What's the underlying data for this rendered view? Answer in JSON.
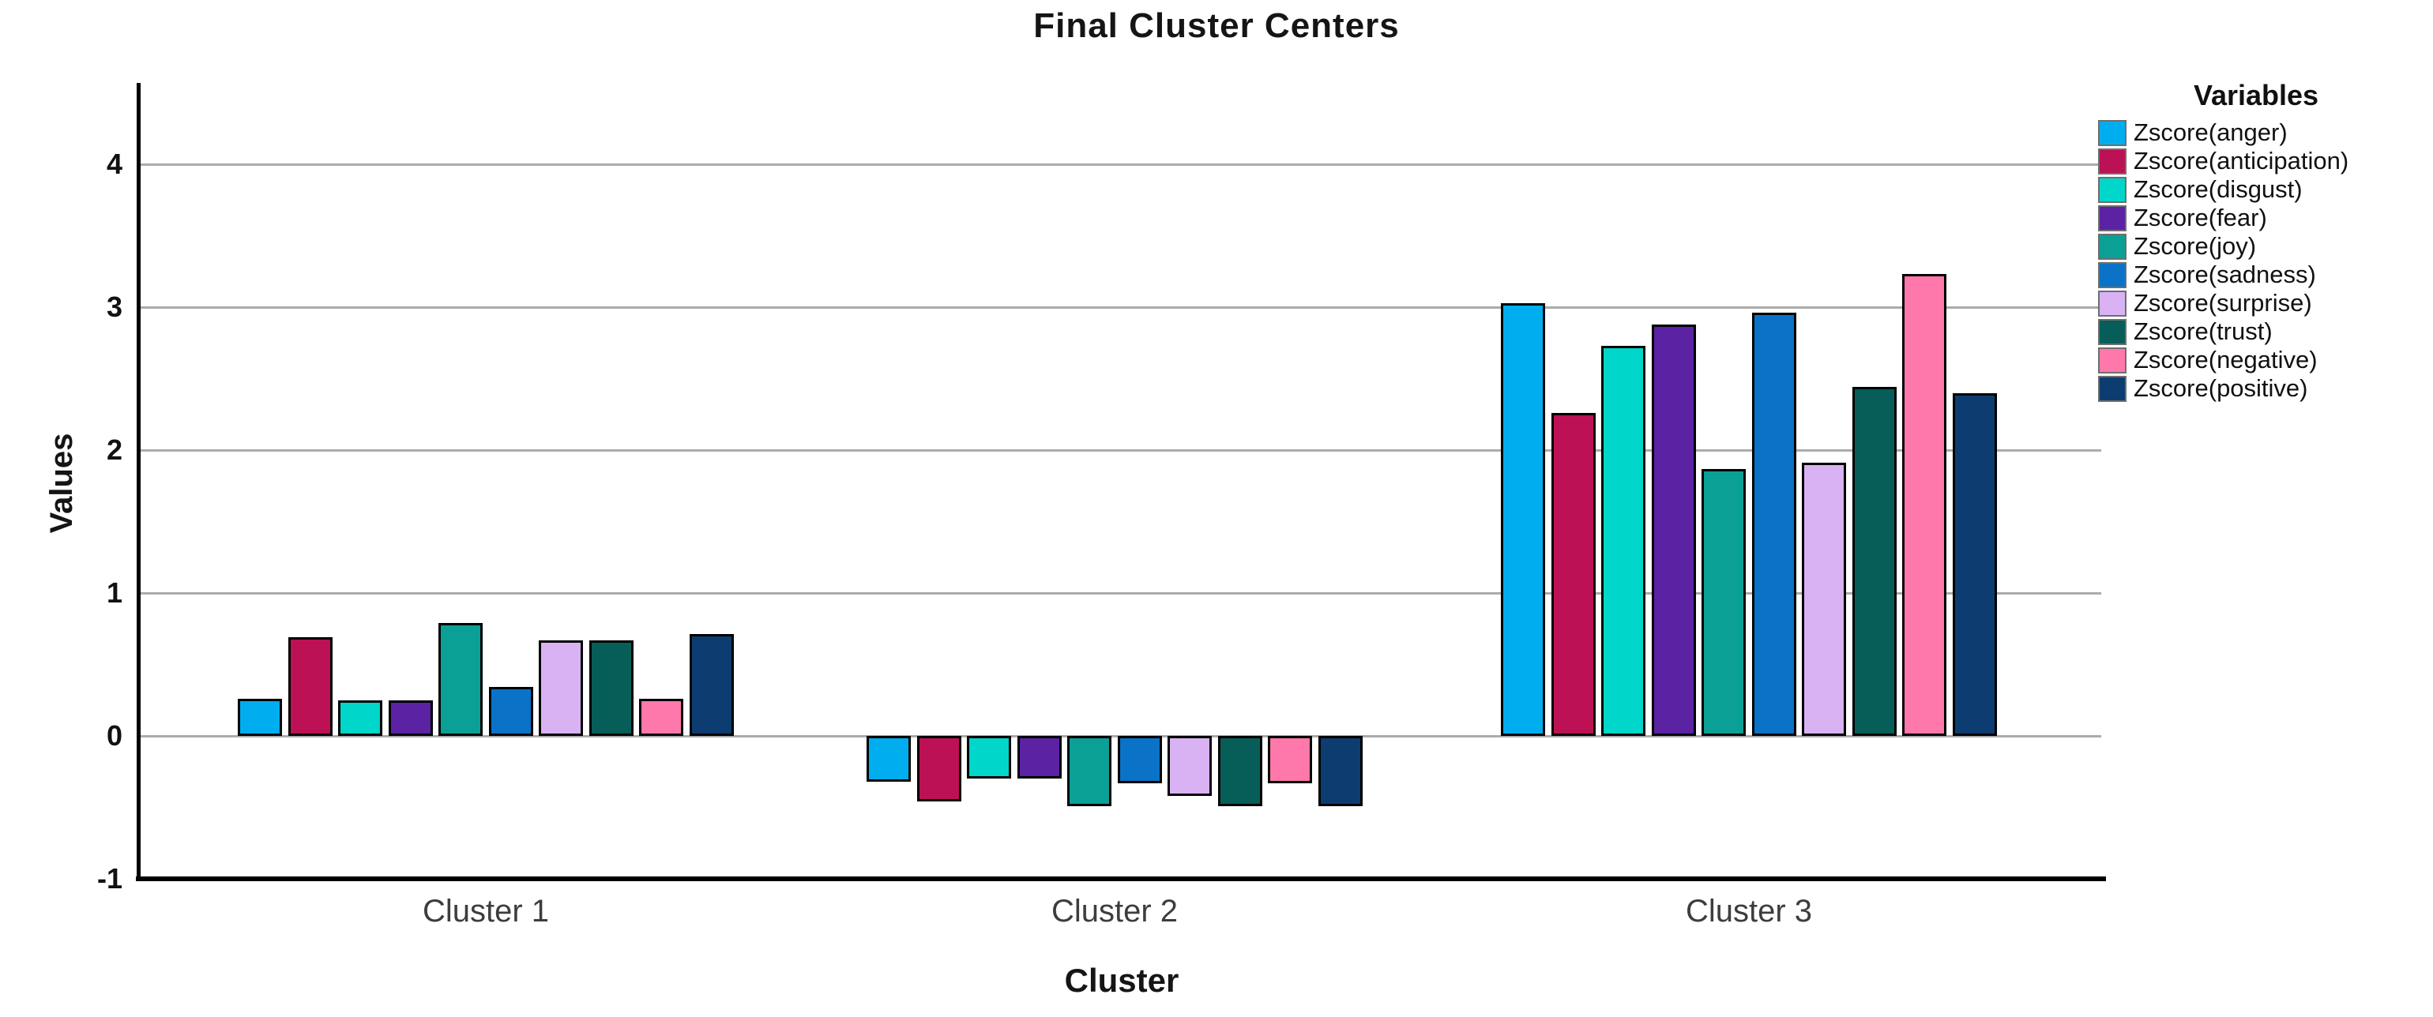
{
  "chart_data": {
    "type": "bar",
    "title": "Final Cluster Centers",
    "xlabel": "Cluster",
    "ylabel": "Values",
    "categories": [
      "Cluster 1",
      "Cluster 2",
      "Cluster 3"
    ],
    "y_ticks": [
      4,
      3,
      2,
      1,
      0,
      -1
    ],
    "ylim": [
      -1,
      4.55
    ],
    "grid": "horizontal-gridlines-at-0-to-4",
    "legend_title": "Variables",
    "legend_position": "right",
    "bar_outline_color": "#000000",
    "gridline_color": "#ababab",
    "series": [
      {
        "name": "Zscore(anger)",
        "color": "#00AEEF",
        "values": [
          0.26,
          -0.32,
          3.03
        ]
      },
      {
        "name": "Zscore(anticipation)",
        "color": "#BC1154",
        "values": [
          0.69,
          -0.46,
          2.26
        ]
      },
      {
        "name": "Zscore(disgust)",
        "color": "#00D6C9",
        "values": [
          0.25,
          -0.3,
          2.73
        ]
      },
      {
        "name": "Zscore(fear)",
        "color": "#5B22A3",
        "values": [
          0.25,
          -0.3,
          2.88
        ]
      },
      {
        "name": "Zscore(joy)",
        "color": "#0AA096",
        "values": [
          0.79,
          -0.49,
          1.87
        ]
      },
      {
        "name": "Zscore(sadness)",
        "color": "#0A73C8",
        "values": [
          0.34,
          -0.33,
          2.96
        ]
      },
      {
        "name": "Zscore(surprise)",
        "color": "#D8B2F2",
        "values": [
          0.67,
          -0.42,
          1.91
        ]
      },
      {
        "name": "Zscore(trust)",
        "color": "#075E58",
        "values": [
          0.67,
          -0.49,
          2.44
        ]
      },
      {
        "name": "Zscore(negative)",
        "color": "#FF78AC",
        "values": [
          0.26,
          -0.33,
          3.23
        ]
      },
      {
        "name": "Zscore(positive)",
        "color": "#0D3D70",
        "values": [
          0.71,
          -0.49,
          2.4
        ]
      }
    ]
  }
}
